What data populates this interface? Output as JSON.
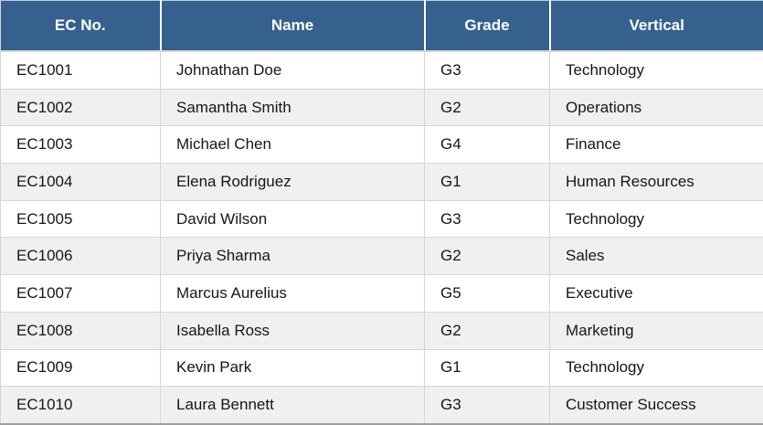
{
  "table": {
    "columns": [
      {
        "key": "ec_no",
        "label": "EC No."
      },
      {
        "key": "name",
        "label": "Name"
      },
      {
        "key": "grade",
        "label": "Grade"
      },
      {
        "key": "vertical",
        "label": "Vertical"
      }
    ],
    "rows": [
      [
        "EC1001",
        "Johnathan Doe",
        "G3",
        "Technology"
      ],
      [
        "EC1002",
        "Samantha Smith",
        "G2",
        "Operations"
      ],
      [
        "EC1003",
        "Michael Chen",
        "G4",
        "Finance"
      ],
      [
        "EC1004",
        "Elena Rodriguez",
        "G1",
        "Human Resources"
      ],
      [
        "EC1005",
        "David Wilson",
        "G3",
        "Technology"
      ],
      [
        "EC1006",
        "Priya Sharma",
        "G2",
        "Sales"
      ],
      [
        "EC1007",
        "Marcus Aurelius",
        "G5",
        "Executive"
      ],
      [
        "EC1008",
        "Isabella Ross",
        "G2",
        "Marketing"
      ],
      [
        "EC1009",
        "Kevin Park",
        "G1",
        "Technology"
      ],
      [
        "EC1010",
        "Laura Bennett",
        "G3",
        "Customer Success"
      ]
    ]
  },
  "colors": {
    "header_bg": "#36618E",
    "header_text": "#FFFFFF",
    "row_bg": "#FFFFFF",
    "row_alt_bg": "#F0F0F0",
    "grid_line": "#D6D6D6",
    "outer_border": "#9E9E9E",
    "body_text": "#161616"
  }
}
